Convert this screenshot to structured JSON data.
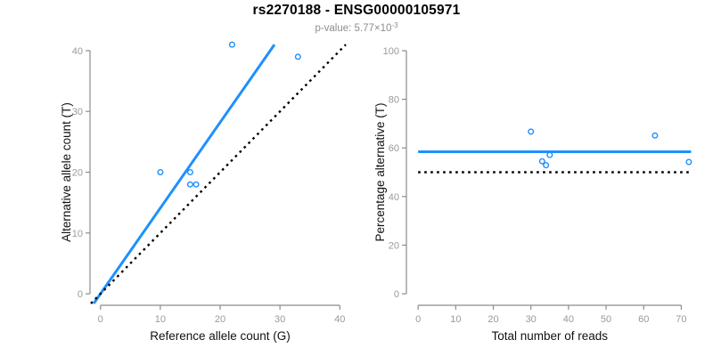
{
  "header": {
    "title": "rs2270188 - ENSG00000105971",
    "subtitle_prefix": "p-value: 5.77×10",
    "subtitle_exponent": "-3"
  },
  "colors": {
    "accent_blue": "#1E90FF",
    "line_black": "#000000",
    "axis_gray": "#8c8c8c",
    "tick_label_gray": "#9a9a9a",
    "axis_title_black": "#111111"
  },
  "chart_data": [
    {
      "type": "scatter",
      "name": "allele-counts",
      "xlabel": "Reference allele count (G)",
      "ylabel": "Alternative allele count (T)",
      "xlim": [
        0,
        40
      ],
      "ylim": [
        0,
        40
      ],
      "xticks": [
        0,
        10,
        20,
        30,
        40
      ],
      "yticks": [
        0,
        10,
        20,
        30,
        40
      ],
      "grid": false,
      "legend": null,
      "points": [
        [
          10,
          20
        ],
        [
          15,
          20
        ],
        [
          15,
          18
        ],
        [
          16,
          18
        ],
        [
          22,
          41
        ],
        [
          33,
          39
        ]
      ],
      "lines": [
        {
          "name": "fitted-ratio-line",
          "style": "solid",
          "color": "#1E90FF",
          "slope": 1.41,
          "intercept": 0
        },
        {
          "name": "identity-line",
          "style": "dotted",
          "color": "#000000",
          "slope": 1,
          "intercept": 0
        }
      ]
    },
    {
      "type": "scatter",
      "name": "percentage-vs-reads",
      "xlabel": "Total number of reads",
      "ylabel": "Percentage alternative (T)",
      "xlim": [
        0,
        72
      ],
      "ylim": [
        0,
        100
      ],
      "xticks": [
        0,
        10,
        20,
        30,
        40,
        50,
        60,
        70
      ],
      "yticks": [
        0,
        20,
        40,
        60,
        80,
        100
      ],
      "grid": false,
      "legend": null,
      "points": [
        [
          30,
          66.7
        ],
        [
          33,
          54.5
        ],
        [
          34,
          52.9
        ],
        [
          35,
          57.1
        ],
        [
          63,
          65.1
        ],
        [
          72,
          54.2
        ]
      ],
      "lines": [
        {
          "name": "mean-percentage-line",
          "style": "solid",
          "color": "#1E90FF",
          "y": 58.4
        },
        {
          "name": "expected-50-percent-line",
          "style": "dotted",
          "color": "#000000",
          "y": 50
        }
      ]
    }
  ]
}
